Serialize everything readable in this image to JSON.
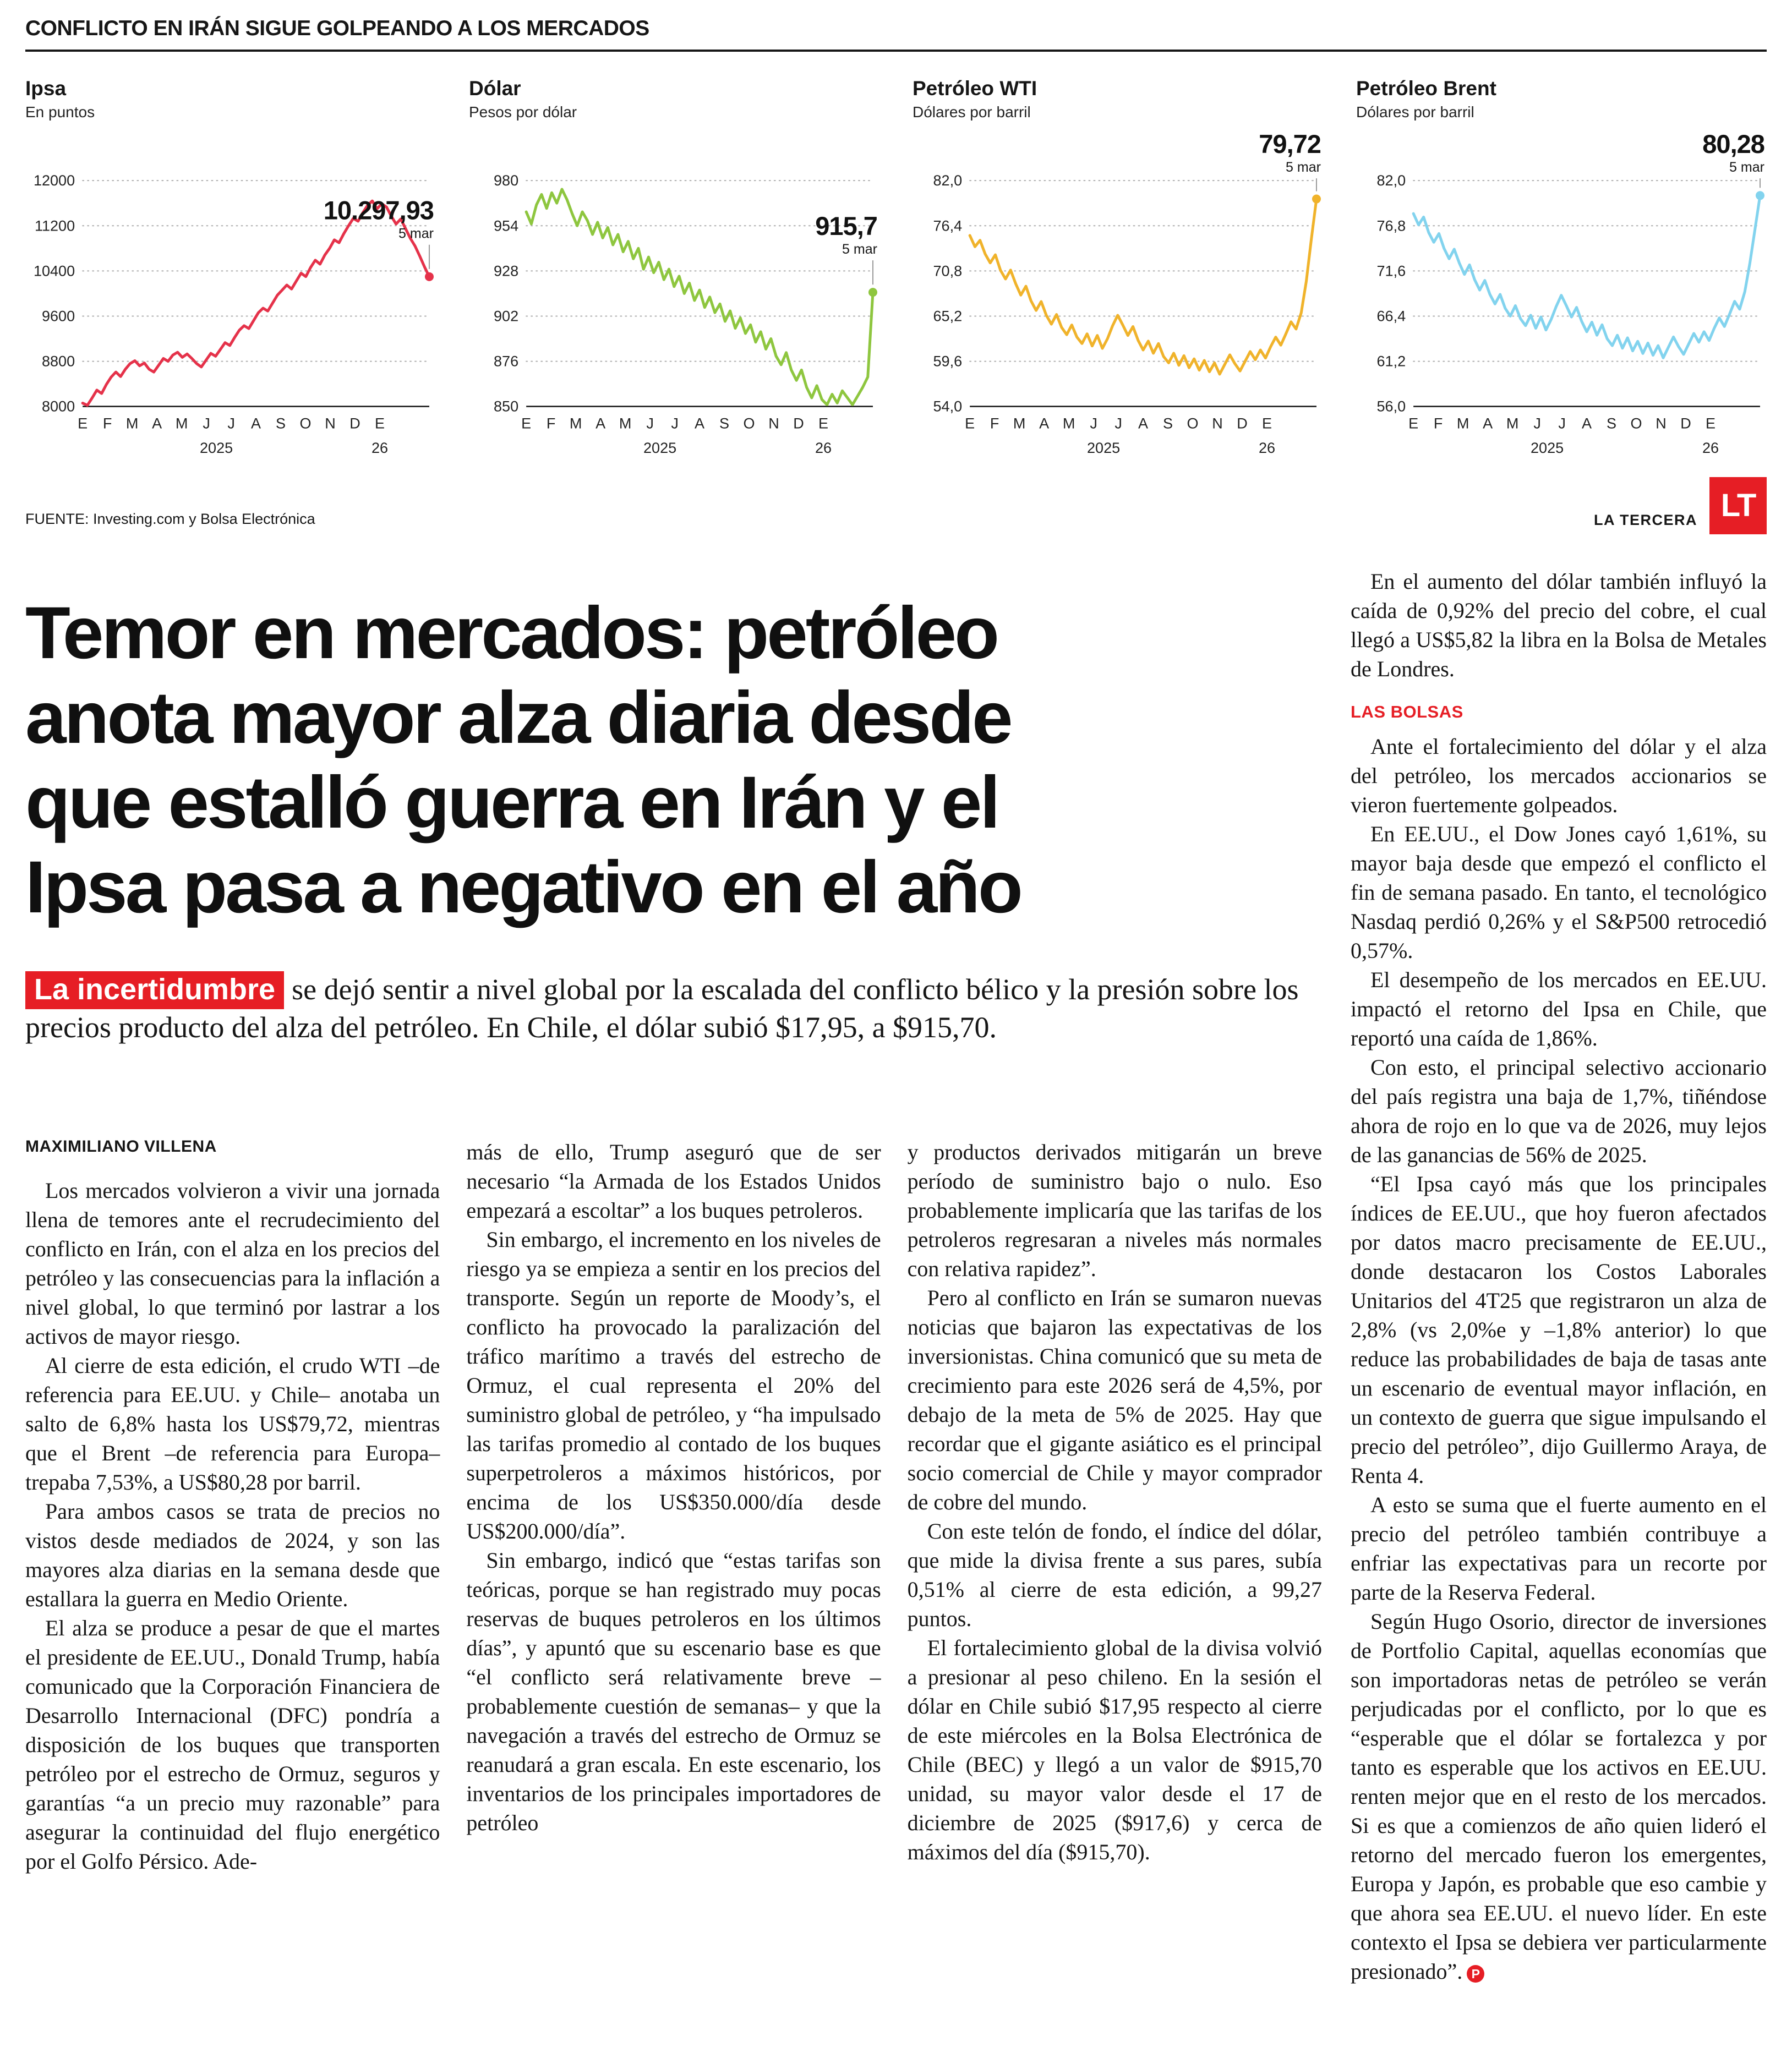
{
  "kicker": "CONFLICTO EN IRÁN SIGUE GOLPEANDO A LOS MERCADOS",
  "source_line": "FUENTE: Investing.com y Bolsa Electrónica",
  "brand": {
    "logo_text": "LT",
    "name": "LA TERCERA",
    "red": "#e61e25"
  },
  "chart_data": [
    {
      "type": "line",
      "title": "Ipsa",
      "subtitle": "En puntos",
      "color": "#e5324a",
      "last_value_label": "10.297,93",
      "last_date_label": "5 mar",
      "y_ticks": [
        "12000",
        "11200",
        "10400",
        "9600",
        "8800",
        "8000"
      ],
      "ylim": [
        8000,
        12000
      ],
      "x_ticks": [
        "E",
        "F",
        "M",
        "A",
        "M",
        "J",
        "J",
        "A",
        "S",
        "O",
        "N",
        "D",
        "E"
      ],
      "x_year_labels": [
        "2025",
        "26"
      ],
      "grid": "dotted-horizontal",
      "values": [
        8060,
        8020,
        8150,
        8290,
        8230,
        8390,
        8520,
        8610,
        8530,
        8660,
        8760,
        8810,
        8720,
        8770,
        8660,
        8610,
        8730,
        8850,
        8800,
        8910,
        8960,
        8870,
        8930,
        8850,
        8760,
        8700,
        8820,
        8940,
        8890,
        9010,
        9130,
        9080,
        9220,
        9350,
        9430,
        9380,
        9520,
        9660,
        9740,
        9690,
        9830,
        9970,
        10060,
        10150,
        10080,
        10220,
        10360,
        10300,
        10460,
        10590,
        10520,
        10680,
        10800,
        10950,
        10900,
        11060,
        11200,
        11330,
        11280,
        11430,
        11560,
        11640,
        11500,
        11590,
        11530,
        11370,
        11230,
        11320,
        11150,
        10980,
        10840,
        10660,
        10470,
        10297.93
      ]
    },
    {
      "type": "line",
      "title": "Dólar",
      "subtitle": "Pesos por dólar",
      "color": "#8ec63f",
      "last_value_label": "915,7",
      "last_date_label": "5 mar",
      "y_ticks": [
        "980",
        "954",
        "928",
        "902",
        "876",
        "850"
      ],
      "ylim": [
        850,
        980
      ],
      "x_ticks": [
        "E",
        "F",
        "M",
        "A",
        "M",
        "J",
        "J",
        "A",
        "S",
        "O",
        "N",
        "D",
        "E"
      ],
      "x_year_labels": [
        "2025",
        "26"
      ],
      "grid": "dotted-horizontal",
      "values": [
        962,
        955,
        966,
        972,
        964,
        973,
        967,
        975,
        969,
        961,
        954,
        962,
        957,
        949,
        956,
        947,
        953,
        943,
        949,
        939,
        945,
        935,
        941,
        929,
        936,
        927,
        933,
        923,
        929,
        919,
        925,
        915,
        921,
        911,
        917,
        907,
        913,
        904,
        909,
        899,
        905,
        895,
        901,
        892,
        897,
        887,
        893,
        883,
        889,
        879,
        874,
        881,
        871,
        865,
        871,
        861,
        855,
        862,
        854,
        851,
        857,
        852,
        859,
        855,
        851,
        856,
        861,
        867,
        915.7
      ]
    },
    {
      "type": "line",
      "title": "Petróleo WTI",
      "subtitle": "Dólares por barril",
      "color": "#f0b32b",
      "last_value_label": "79,72",
      "last_date_label": "5 mar",
      "y_ticks": [
        "82,0",
        "76,4",
        "70,8",
        "65,2",
        "59,6",
        "54,0"
      ],
      "ylim": [
        54,
        82
      ],
      "x_ticks": [
        "E",
        "F",
        "M",
        "A",
        "M",
        "J",
        "J",
        "A",
        "S",
        "O",
        "N",
        "D",
        "E"
      ],
      "x_year_labels": [
        "2025",
        "26"
      ],
      "grid": "dotted-horizontal",
      "values": [
        75.2,
        73.8,
        74.6,
        72.9,
        71.8,
        72.8,
        70.9,
        69.8,
        70.9,
        69.2,
        67.8,
        68.9,
        67.1,
        65.9,
        67.0,
        65.3,
        64.2,
        65.4,
        63.8,
        62.9,
        64.1,
        62.6,
        61.8,
        63.0,
        61.5,
        62.8,
        61.2,
        62.4,
        64.0,
        65.3,
        64.1,
        62.8,
        63.9,
        62.2,
        61.0,
        62.1,
        60.6,
        61.8,
        60.2,
        59.4,
        60.6,
        59.1,
        60.3,
        58.8,
        59.9,
        58.5,
        59.7,
        58.3,
        59.4,
        58.0,
        59.2,
        60.4,
        59.3,
        58.4,
        59.6,
        60.8,
        59.8,
        61.0,
        60.0,
        61.4,
        62.6,
        61.6,
        63.0,
        64.5,
        63.6,
        65.6,
        69.5,
        74.8,
        79.72
      ]
    },
    {
      "type": "line",
      "title": "Petróleo Brent",
      "subtitle": "Dólares por barril",
      "color": "#82d3ee",
      "last_value_label": "80,28",
      "last_date_label": "5 mar",
      "y_ticks": [
        "82,0",
        "76,8",
        "71,6",
        "66,4",
        "61,2",
        "56,0"
      ],
      "ylim": [
        56,
        82
      ],
      "x_ticks": [
        "E",
        "F",
        "M",
        "A",
        "M",
        "J",
        "J",
        "A",
        "S",
        "O",
        "N",
        "D",
        "E"
      ],
      "x_year_labels": [
        "2025",
        "26"
      ],
      "grid": "dotted-horizontal",
      "values": [
        78.2,
        76.9,
        77.8,
        76.0,
        74.9,
        75.9,
        74.2,
        73.0,
        74.1,
        72.5,
        71.2,
        72.3,
        70.6,
        69.4,
        70.5,
        68.9,
        67.8,
        68.9,
        67.3,
        66.4,
        67.6,
        66.1,
        65.3,
        66.5,
        65.0,
        66.3,
        64.8,
        66.0,
        67.5,
        68.8,
        67.6,
        66.3,
        67.4,
        65.8,
        64.6,
        65.7,
        64.2,
        65.4,
        63.8,
        63.0,
        64.2,
        62.7,
        63.9,
        62.4,
        63.5,
        62.1,
        63.3,
        61.9,
        63.0,
        61.6,
        62.8,
        64.0,
        62.9,
        62.0,
        63.2,
        64.4,
        63.4,
        64.6,
        63.6,
        65.0,
        66.2,
        65.2,
        66.6,
        68.1,
        67.2,
        69.2,
        72.5,
        76.4,
        80.28
      ]
    }
  ],
  "article": {
    "headline_lines": [
      "Temor en mercados: petróleo",
      "anota mayor alza diaria desde",
      "que estalló guerra en Irán y el",
      "Ipsa pasa a negativo en el año"
    ],
    "lead_highlight": "La incertidumbre",
    "lead_text": "se dejó sentir a nivel global por la escalada del conflicto bélico y la presión sobre los precios producto del alza del petróleo. En Chile, el dólar subió $17,95, a $915,70.",
    "byline": "MAXIMILIANO VILLENA",
    "subhead": "LAS BOLSAS",
    "end_mark": "P",
    "col1": [
      "Los mercados volvieron a vivir una jornada llena de temores ante el recrudecimiento del conflicto en Irán, con el alza en los precios del petróleo y las consecuencias para la inflación a nivel global, lo que terminó por lastrar a los activos de mayor riesgo.",
      "Al cierre de esta edición, el crudo WTI –de referencia para EE.UU. y Chile– anotaba un salto de 6,8% hasta los US$79,72, mientras que el Brent –de referencia para Europa– trepaba 7,53%, a US$80,28 por barril.",
      "Para ambos casos se trata de precios no vistos desde mediados de 2024, y son las mayores alza diarias en la semana desde que estallara la guerra en Medio Oriente.",
      "El alza se produce a pesar de que el martes el presidente de EE.UU., Donald Trump, había comunicado que la Corporación Financiera de Desarrollo Internacional (DFC) pondría a disposición de los buques que transporten petróleo por el estrecho de Ormuz, seguros y garantías “a un precio muy razonable” para asegurar la continuidad del flujo energético por el Golfo Pérsico. Ade-"
    ],
    "col2": [
      "más de ello, Trump aseguró que de ser necesario “la Armada de los Estados Unidos empezará a escoltar” a los buques petroleros.",
      "Sin embargo, el incremento en los niveles de riesgo ya se empieza a sentir en los precios del transporte. Según un reporte de Moody’s, el conflicto ha provocado la paralización del tráfico marítimo a través del estrecho de Ormuz, el cual representa el 20% del suministro global de petróleo, y “ha impulsado las tarifas promedio al contado de los buques superpetroleros a máximos históricos, por encima de los US$350.000/día desde US$200.000/día”.",
      "Sin embargo, indicó que “estas tarifas son teóricas, porque se han registrado muy pocas reservas de buques petroleros en los últimos días”, y apuntó que su escenario base es que “el conflicto será relativamente breve –probablemente cuestión de semanas– y que la navegación a través del estrecho de Ormuz se reanudará a gran escala. En este escenario, los inventarios de los principales importadores de petróleo"
    ],
    "col3": [
      "y productos derivados mitigarán un breve período de suministro bajo o nulo. Eso probablemente implicaría que las tarifas de los petroleros regresaran a niveles más normales con relativa rapidez”.",
      "Pero al conflicto en Irán se sumaron nuevas noticias que bajaron las expectativas de los inversionistas. China comunicó que su meta de crecimiento para este 2026 será de 4,5%, por debajo de la meta de 5% de 2025. Hay que recordar que el gigante asiático es el principal socio comercial de Chile y mayor comprador de cobre del mundo.",
      "Con este telón de fondo, el índice del dólar, que mide la divisa frente a sus pares, subía 0,51% al cierre de esta edición, a 99,27 puntos.",
      "El fortalecimiento global de la divisa volvió a presionar al peso chileno. En la sesión el dólar en Chile subió $17,95 respecto al cierre de este miércoles en la Bolsa Electrónica de Chile (BEC) y llegó a un valor de $915,70 unidad, su mayor valor desde el 17 de diciembre de 2025 ($917,6) y cerca de máximos del día ($915,70)."
    ],
    "col4_intro": [
      "En el aumento del dólar también influyó la caída de 0,92% del precio del cobre, el cual llegó a US$5,82 la libra en la Bolsa de Metales de Londres."
    ],
    "col4_rest": [
      "Ante el fortalecimiento del dólar y el alza del petróleo, los mercados accionarios se vieron fuertemente golpeados.",
      "En EE.UU., el Dow Jones cayó 1,61%, su mayor baja desde que empezó el conflicto el fin de semana pasado. En tanto, el tecnológico Nasdaq perdió 0,26% y el S&P500 retrocedió 0,57%.",
      "El desempeño de los mercados en EE.UU. impactó el retorno del Ipsa en Chile, que reportó una caída de 1,86%.",
      "Con esto, el principal selectivo accionario del país registra una baja de 1,7%, tiñéndose ahora de rojo en lo que va de 2026, muy lejos de las ganancias de 56% de 2025.",
      "“El Ipsa cayó más que los principales índices de EE.UU., que hoy fueron afectados por datos macro precisamente de EE.UU., donde destacaron los Costos Laborales Unitarios del 4T25 que registraron un alza de 2,8% (vs 2,0%e y –1,8% anterior) lo que reduce las probabilidades de baja de tasas ante un escenario de eventual mayor inflación, en un contexto de guerra que sigue impulsando el precio del petróleo”, dijo Guillermo Araya, de Renta 4.",
      "A esto se suma que el fuerte aumento en el precio del petróleo también contribuye a enfriar las expectativas para un recorte por parte de la Reserva Federal.",
      "Según Hugo Osorio, director de inversiones de Portfolio Capital, aquellas economías que son importadoras netas de petróleo se verán perjudicadas por el conflicto, por lo que es “esperable que el dólar se fortalezca y por tanto es esperable que los activos en EE.UU. renten mejor que en el resto de los mercados. Si es que a comienzos de año quien lideró el retorno del mercado fueron los emergentes, Europa y Japón, es probable que eso cambie y que ahora sea EE.UU. el nuevo líder. En este contexto el Ipsa se debiera ver particularmente presionado”."
    ]
  }
}
